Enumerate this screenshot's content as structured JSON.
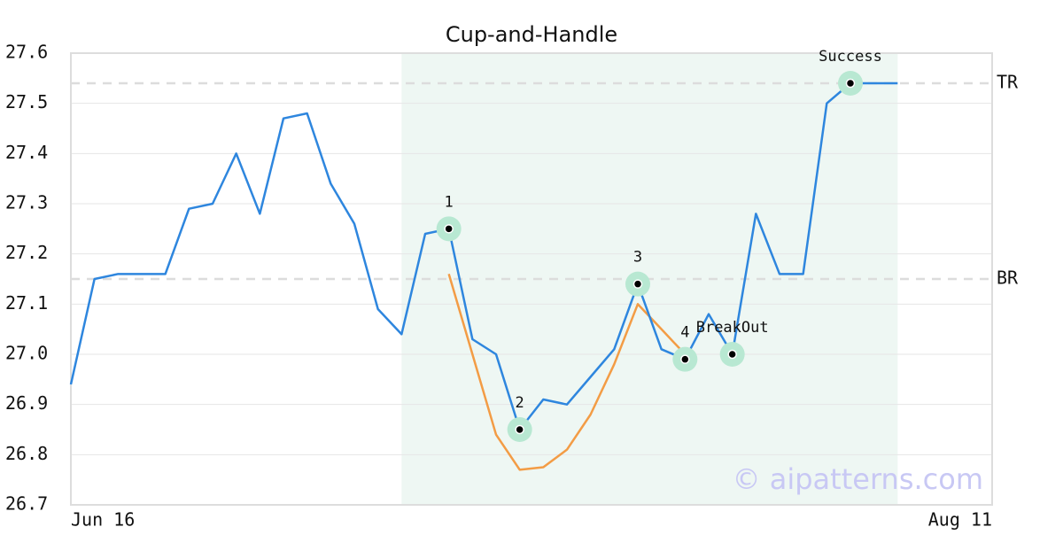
{
  "chart_data": {
    "type": "line",
    "title": "Cup-and-Handle",
    "categories": [
      "Jun 16",
      null,
      null,
      null,
      null,
      null,
      null,
      null,
      null,
      null,
      null,
      null,
      null,
      null,
      null,
      null,
      null,
      null,
      null,
      null,
      null,
      null,
      null,
      null,
      null,
      null,
      null,
      null,
      null,
      null,
      null,
      null,
      null,
      null,
      null,
      null,
      null,
      null,
      null,
      "Aug 11"
    ],
    "series": [
      {
        "color": "#2e86de",
        "values": [
          26.94,
          27.15,
          27.16,
          27.16,
          27.16,
          27.29,
          27.3,
          27.4,
          27.28,
          27.47,
          27.48,
          27.34,
          27.26,
          27.09,
          27.04,
          27.24,
          27.25,
          27.03,
          27.0,
          26.85,
          26.91,
          26.9,
          26.955,
          27.01,
          27.14,
          27.01,
          26.99,
          27.08,
          27.0,
          27.28,
          27.16,
          27.16,
          27.5,
          27.54,
          27.54,
          27.54,
          null,
          null,
          null,
          null
        ]
      },
      {
        "color": "#f39c45",
        "values": [
          null,
          null,
          null,
          null,
          null,
          null,
          null,
          null,
          null,
          null,
          null,
          null,
          null,
          null,
          null,
          null,
          27.16,
          27.0,
          26.84,
          26.77,
          26.775,
          26.81,
          26.88,
          26.98,
          27.1,
          27.05,
          27.0,
          null,
          null,
          null,
          null,
          null,
          null,
          null,
          null,
          null,
          null,
          null,
          null,
          null
        ]
      }
    ],
    "points": [
      {
        "x": 16,
        "value": 27.25,
        "label": "1"
      },
      {
        "x": 19,
        "value": 26.85,
        "label": "2"
      },
      {
        "x": 24,
        "value": 27.14,
        "label": "3"
      },
      {
        "x": 26,
        "value": 26.99,
        "label": "4"
      },
      {
        "x": 28,
        "value": 27.0,
        "label": "BreakOut"
      },
      {
        "x": 33,
        "value": 27.54,
        "label": "Success"
      }
    ],
    "hlines": [
      {
        "value": 27.54,
        "label": "TR"
      },
      {
        "value": 27.15,
        "label": "BR"
      }
    ],
    "shade": [
      14,
      35
    ],
    "watermark": "© aipatterns.com",
    "ylim": [
      26.7,
      27.6
    ],
    "yticks": [
      26.7,
      26.8,
      26.9,
      {
        "value": 27.0,
        "label": "27.0"
      },
      27.1,
      27.2,
      27.3,
      27.4,
      27.5,
      27.6
    ],
    "grid": true
  }
}
